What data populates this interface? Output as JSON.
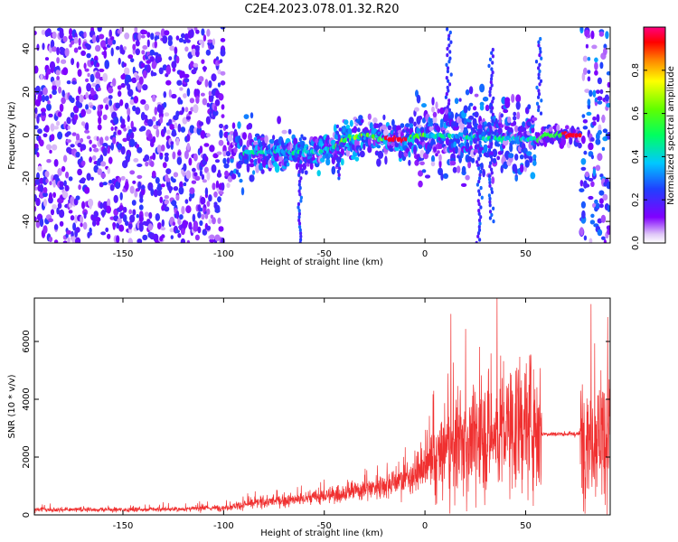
{
  "chart_data": [
    {
      "type": "heatmap",
      "title": "C2E4.2023.078.01.32.R20",
      "xlabel": "Height of straight line (km)",
      "ylabel": "Frequency (Hz)",
      "xlim": [
        -194,
        92
      ],
      "ylim": [
        -50,
        50
      ],
      "xticks": [
        -150,
        -100,
        -50,
        0,
        50
      ],
      "yticks": [
        -40,
        -20,
        0,
        20,
        40
      ],
      "colorbar": {
        "label": "Normalized spectral amplitude",
        "range": [
          0.0,
          1.0
        ],
        "ticks": [
          0.0,
          0.2,
          0.4,
          0.6,
          0.8
        ],
        "colormap": "gist_rainbow_r"
      },
      "dominant_frequency_track": [
        {
          "x": -55,
          "y": -8
        },
        {
          "x": -45,
          "y": -6
        },
        {
          "x": -40,
          "y": -2
        },
        {
          "x": -30,
          "y": 0
        },
        {
          "x": -20,
          "y": -2
        },
        {
          "x": -10,
          "y": -2
        },
        {
          "x": 0,
          "y": 0
        },
        {
          "x": 56,
          "y": -2
        },
        {
          "x": 60,
          "y": 0
        },
        {
          "x": 70,
          "y": 0
        },
        {
          "x": 76,
          "y": 0
        }
      ]
    },
    {
      "type": "line",
      "title": "",
      "xlabel": "Height of straight line (km)",
      "ylabel": "SNR (10 * v/v)",
      "xlim": [
        -194,
        92
      ],
      "ylim": [
        0,
        7500
      ],
      "xticks": [
        -150,
        -100,
        -50,
        0,
        50
      ],
      "yticks": [
        0,
        2000,
        4000,
        6000
      ],
      "color": "#f03030",
      "series": [
        {
          "name": "",
          "x": [
            -194,
            -150,
            -120,
            -100,
            -90,
            -80,
            -70,
            -60,
            -50,
            -40,
            -30,
            -20,
            -10,
            0,
            3,
            10,
            20,
            30,
            40,
            50,
            55,
            58,
            60,
            70,
            75,
            78,
            85,
            92
          ],
          "y": [
            180,
            180,
            200,
            250,
            350,
            450,
            500,
            550,
            650,
            750,
            900,
            1050,
            1250,
            1600,
            1700,
            2200,
            2500,
            2700,
            2900,
            3200,
            3300,
            2800,
            2800,
            2800,
            2800,
            2800,
            2800,
            2800
          ]
        }
      ]
    }
  ]
}
